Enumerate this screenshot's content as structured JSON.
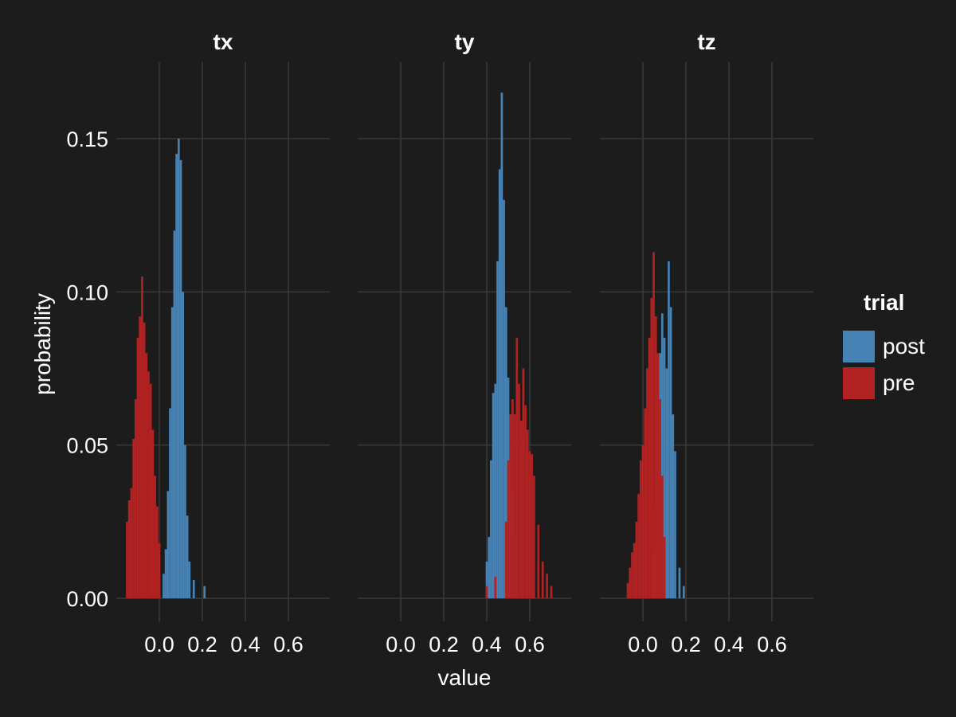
{
  "chart_data": {
    "type": "histogram",
    "facets": [
      "tx",
      "ty",
      "tz"
    ],
    "xlabel": "value",
    "ylabel": "probability",
    "xticks": [
      "0.0",
      "0.2",
      "0.4",
      "0.6"
    ],
    "yticks": [
      "0.00",
      "0.05",
      "0.10",
      "0.15"
    ],
    "xlim": [
      -0.16,
      0.78
    ],
    "ylim": [
      0,
      0.17
    ],
    "grid": true,
    "legend": {
      "title": "trial",
      "position": "right",
      "items": [
        {
          "name": "post",
          "color": "#4682b4"
        },
        {
          "name": "pre",
          "color": "#b22222"
        }
      ]
    },
    "panels": [
      {
        "facet": "tx",
        "series": [
          {
            "name": "post",
            "color": "#4682b4",
            "x": [
              0.02,
              0.03,
              0.04,
              0.05,
              0.06,
              0.07,
              0.08,
              0.09,
              0.1,
              0.11,
              0.12,
              0.13,
              0.14,
              0.16,
              0.21
            ],
            "y": [
              0.008,
              0.016,
              0.035,
              0.062,
              0.095,
              0.12,
              0.145,
              0.15,
              0.143,
              0.1,
              0.05,
              0.027,
              0.012,
              0.006,
              0.004
            ]
          },
          {
            "name": "pre",
            "color": "#b22222",
            "x": [
              -0.15,
              -0.14,
              -0.13,
              -0.12,
              -0.11,
              -0.1,
              -0.09,
              -0.08,
              -0.07,
              -0.06,
              -0.05,
              -0.04,
              -0.03,
              -0.02,
              -0.01,
              0.0
            ],
            "y": [
              0.025,
              0.032,
              0.036,
              0.052,
              0.065,
              0.085,
              0.092,
              0.105,
              0.09,
              0.08,
              0.074,
              0.07,
              0.055,
              0.04,
              0.03,
              0.018
            ]
          }
        ]
      },
      {
        "facet": "ty",
        "series": [
          {
            "name": "post",
            "color": "#4682b4",
            "x": [
              0.4,
              0.41,
              0.42,
              0.43,
              0.44,
              0.45,
              0.46,
              0.47,
              0.48,
              0.49,
              0.5,
              0.51,
              0.52,
              0.53
            ],
            "y": [
              0.012,
              0.02,
              0.045,
              0.067,
              0.07,
              0.11,
              0.14,
              0.165,
              0.13,
              0.095,
              0.072,
              0.06,
              0.035,
              0.02
            ]
          },
          {
            "name": "pre",
            "color": "#b22222",
            "x": [
              0.4,
              0.44,
              0.49,
              0.5,
              0.51,
              0.52,
              0.53,
              0.54,
              0.55,
              0.56,
              0.57,
              0.58,
              0.59,
              0.6,
              0.61,
              0.62,
              0.64,
              0.66,
              0.68,
              0.7
            ],
            "y": [
              0.004,
              0.007,
              0.025,
              0.045,
              0.06,
              0.065,
              0.06,
              0.085,
              0.07,
              0.058,
              0.075,
              0.063,
              0.055,
              0.048,
              0.047,
              0.04,
              0.024,
              0.012,
              0.008,
              0.004
            ]
          }
        ]
      },
      {
        "facet": "tz",
        "series": [
          {
            "name": "post",
            "color": "#4682b4",
            "x": [
              0.05,
              0.06,
              0.07,
              0.08,
              0.09,
              0.1,
              0.11,
              0.12,
              0.13,
              0.14,
              0.15,
              0.17,
              0.19
            ],
            "y": [
              0.015,
              0.03,
              0.055,
              0.08,
              0.093,
              0.085,
              0.075,
              0.11,
              0.095,
              0.06,
              0.048,
              0.01,
              0.004
            ]
          },
          {
            "name": "pre",
            "color": "#b22222",
            "x": [
              -0.07,
              -0.06,
              -0.05,
              -0.04,
              -0.03,
              -0.02,
              -0.01,
              0.0,
              0.01,
              0.02,
              0.03,
              0.04,
              0.05,
              0.06,
              0.07,
              0.08,
              0.09,
              0.1
            ],
            "y": [
              0.005,
              0.01,
              0.015,
              0.018,
              0.025,
              0.034,
              0.045,
              0.05,
              0.062,
              0.075,
              0.085,
              0.098,
              0.113,
              0.092,
              0.08,
              0.065,
              0.04,
              0.02
            ]
          }
        ]
      }
    ]
  }
}
